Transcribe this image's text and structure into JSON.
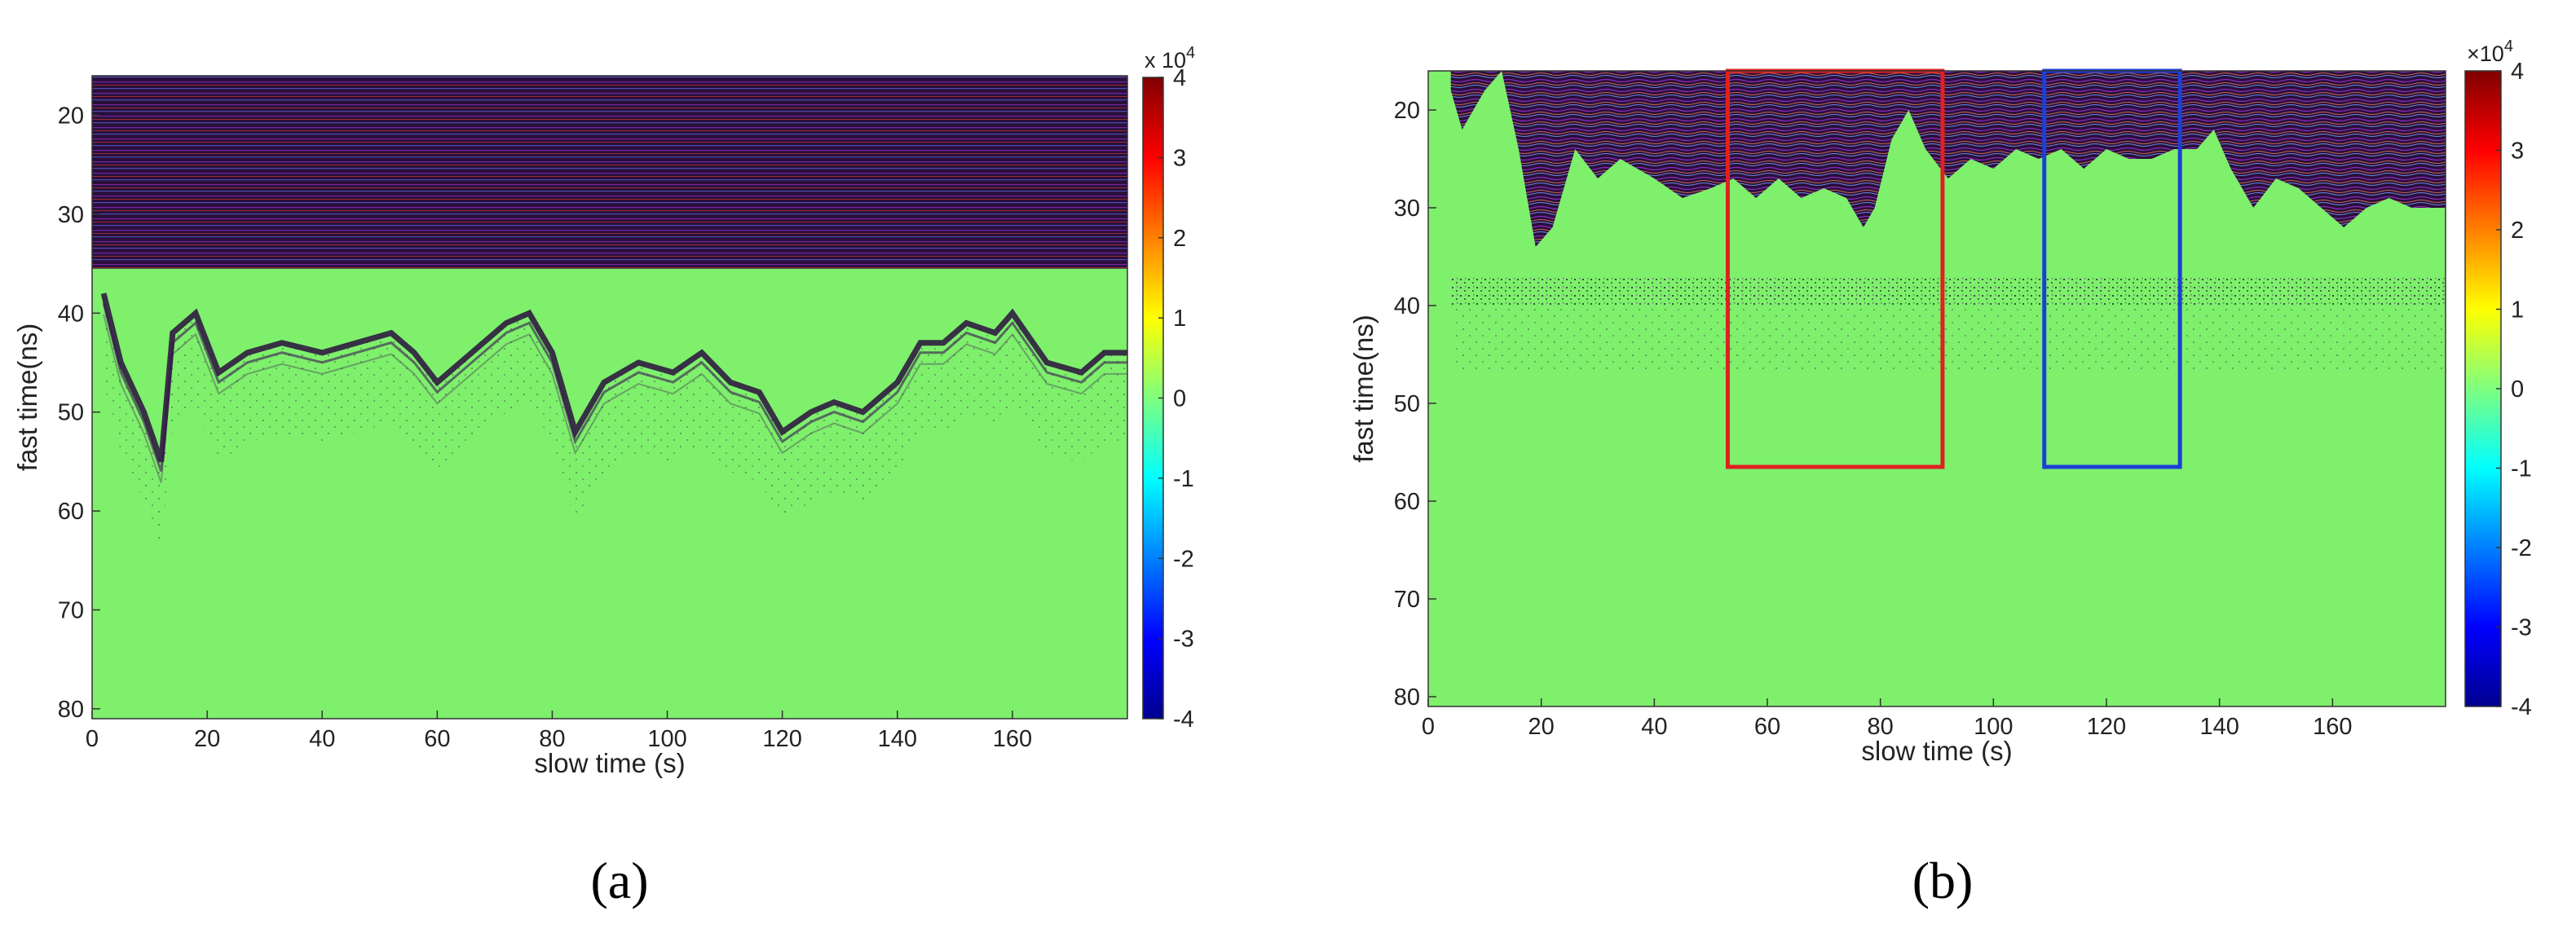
{
  "chart_data": [
    {
      "id": "a",
      "type": "heatmap",
      "panel_label": "(a)",
      "xlabel": "slow time (s)",
      "ylabel": "fast time(ns)",
      "xlim": [
        0,
        180
      ],
      "ylim": [
        81,
        16
      ],
      "y_reversed": true,
      "xticks": [
        0,
        20,
        40,
        60,
        80,
        100,
        120,
        140,
        160
      ],
      "yticks": [
        20,
        30,
        40,
        50,
        60,
        70,
        80
      ],
      "colorbar": {
        "colormap": "jet",
        "range": [
          -4,
          4
        ],
        "ticks": [
          4,
          3,
          2,
          1,
          0,
          -1,
          -2,
          -3,
          -4
        ],
        "exponent_label": "x 10",
        "exponent": "4"
      },
      "background_value": 0,
      "features": {
        "direct_wave_band_ns": [
          16,
          35.5
        ],
        "hyperbola_ridge": [
          [
            2,
            38
          ],
          [
            5,
            45
          ],
          [
            9,
            50
          ],
          [
            12,
            55
          ],
          [
            14,
            42
          ],
          [
            18,
            40
          ],
          [
            22,
            46
          ],
          [
            27,
            44
          ],
          [
            33,
            43
          ],
          [
            40,
            44
          ],
          [
            46,
            43
          ],
          [
            52,
            42
          ],
          [
            56,
            44
          ],
          [
            60,
            47
          ],
          [
            64,
            45
          ],
          [
            68,
            43
          ],
          [
            72,
            41
          ],
          [
            76,
            40
          ],
          [
            80,
            44
          ],
          [
            84,
            52
          ],
          [
            89,
            47
          ],
          [
            95,
            45
          ],
          [
            101,
            46
          ],
          [
            106,
            44
          ],
          [
            111,
            47
          ],
          [
            116,
            48
          ],
          [
            120,
            52
          ],
          [
            125,
            50
          ],
          [
            129,
            49
          ],
          [
            134,
            50
          ],
          [
            140,
            47
          ],
          [
            144,
            43
          ],
          [
            148,
            43
          ],
          [
            152,
            41
          ],
          [
            157,
            42
          ],
          [
            160,
            40
          ],
          [
            166,
            45
          ],
          [
            172,
            46
          ],
          [
            176,
            44
          ],
          [
            180,
            44
          ]
        ]
      }
    },
    {
      "id": "b",
      "type": "heatmap",
      "panel_label": "(b)",
      "xlabel": "slow time (s)",
      "ylabel": "fast time(ns)",
      "xlim": [
        0,
        180
      ],
      "ylim": [
        81,
        16
      ],
      "y_reversed": true,
      "xticks": [
        0,
        20,
        40,
        60,
        80,
        100,
        120,
        140,
        160
      ],
      "yticks": [
        20,
        30,
        40,
        50,
        60,
        70,
        80
      ],
      "colorbar": {
        "colormap": "jet",
        "range": [
          -4,
          4
        ],
        "ticks": [
          4,
          3,
          2,
          1,
          0,
          -1,
          -2,
          -3,
          -4
        ],
        "exponent_label": "×10",
        "exponent": "4"
      },
      "background_value": 0,
      "features": {
        "clutter_top_boundary": [
          [
            3,
            16
          ],
          [
            6,
            22
          ],
          [
            10,
            18
          ],
          [
            13,
            16
          ],
          [
            16,
            24
          ],
          [
            19,
            34
          ],
          [
            22,
            32
          ],
          [
            26,
            24
          ],
          [
            30,
            27
          ],
          [
            34,
            25
          ],
          [
            40,
            27
          ],
          [
            45,
            29
          ],
          [
            50,
            28
          ],
          [
            54,
            27
          ],
          [
            58,
            29
          ],
          [
            62,
            27
          ],
          [
            66,
            29
          ],
          [
            70,
            28
          ],
          [
            74,
            29
          ],
          [
            77,
            32
          ],
          [
            79,
            30
          ],
          [
            82,
            23
          ],
          [
            85,
            20
          ],
          [
            88,
            24
          ],
          [
            92,
            27
          ],
          [
            96,
            25
          ],
          [
            100,
            26
          ],
          [
            104,
            24
          ],
          [
            108,
            25
          ],
          [
            112,
            24
          ],
          [
            116,
            26
          ],
          [
            120,
            24
          ],
          [
            124,
            25
          ],
          [
            128,
            25
          ],
          [
            132,
            24
          ],
          [
            136,
            24
          ],
          [
            139,
            22
          ],
          [
            142,
            26
          ],
          [
            146,
            30
          ],
          [
            150,
            27
          ],
          [
            154,
            28
          ],
          [
            158,
            30
          ],
          [
            162,
            32
          ],
          [
            166,
            30
          ],
          [
            170,
            29
          ],
          [
            174,
            30
          ],
          [
            178,
            30
          ],
          [
            180,
            30
          ]
        ],
        "reflection_band_ns": [
          37,
          40
        ]
      },
      "annotations": [
        {
          "shape": "rectangle",
          "color": "#e02020",
          "x": [
            53,
            91
          ],
          "y": [
            16,
            56.5
          ]
        },
        {
          "shape": "rectangle",
          "color": "#1c3fd6",
          "x": [
            109,
            133
          ],
          "y": [
            16,
            56.5
          ]
        }
      ]
    }
  ]
}
